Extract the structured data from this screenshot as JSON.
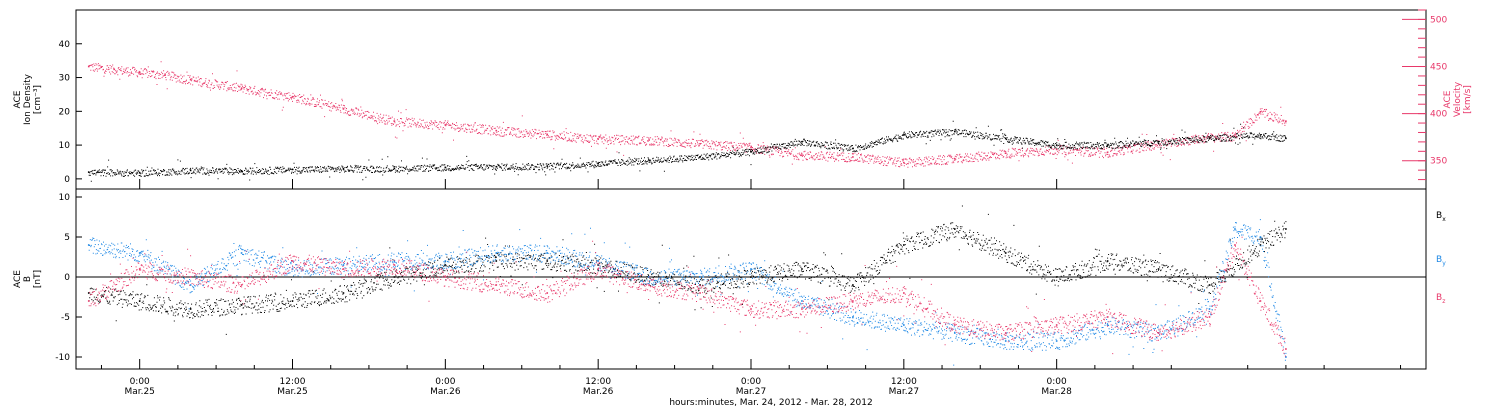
{
  "chart_data": [
    {
      "type": "scatter",
      "panel": "top",
      "left_axis": {
        "label_lines": [
          "ACE",
          "Ion Density",
          "[cm⁻³]"
        ],
        "ylim": [
          -3,
          50
        ],
        "ticks": [
          0,
          10,
          20,
          30,
          40
        ],
        "color": "#000000"
      },
      "right_axis": {
        "label_lines": [
          "ACE",
          "Velocity",
          "[km/s]"
        ],
        "ylim": [
          320,
          510
        ],
        "ticks": [
          350,
          400,
          450,
          500
        ],
        "color": "#e8386a"
      },
      "series": [
        {
          "axis": "left",
          "color": "#000000",
          "points": [
            [
              -4,
              2
            ],
            [
              0,
              1.8
            ],
            [
              4,
              2.5
            ],
            [
              8,
              2.4
            ],
            [
              12,
              2.8
            ],
            [
              16,
              3
            ],
            [
              20,
              3.1
            ],
            [
              24,
              3.4
            ],
            [
              28,
              3.6
            ],
            [
              32,
              3.8
            ],
            [
              36,
              4.5
            ],
            [
              40,
              5.5
            ],
            [
              44,
              6.5
            ],
            [
              48,
              8
            ],
            [
              52,
              11
            ],
            [
              56,
              9
            ],
            [
              60,
              13
            ],
            [
              64,
              14
            ],
            [
              68,
              12
            ],
            [
              72,
              10
            ],
            [
              76,
              10
            ],
            [
              80,
              11
            ],
            [
              84,
              12
            ],
            [
              88,
              13
            ],
            [
              90,
              12
            ]
          ]
        },
        {
          "axis": "right",
          "color": "#e8386a",
          "points": [
            [
              -4,
              450
            ],
            [
              -2,
              447
            ],
            [
              0,
              444
            ],
            [
              2,
              441
            ],
            [
              4,
              436
            ],
            [
              8,
              427
            ],
            [
              12,
              418
            ],
            [
              16,
              405
            ],
            [
              20,
              392
            ],
            [
              24,
              388
            ],
            [
              28,
              382
            ],
            [
              32,
              378
            ],
            [
              36,
              373
            ],
            [
              40,
              372
            ],
            [
              44,
              368
            ],
            [
              48,
              364
            ],
            [
              52,
              356
            ],
            [
              56,
              354
            ],
            [
              60,
              348
            ],
            [
              64,
              352
            ],
            [
              68,
              358
            ],
            [
              72,
              362
            ],
            [
              76,
              359
            ],
            [
              80,
              368
            ],
            [
              84,
              375
            ],
            [
              86,
              376
            ],
            [
              88,
              402
            ],
            [
              90,
              392
            ]
          ]
        }
      ]
    },
    {
      "type": "scatter",
      "panel": "bottom",
      "left_axis": {
        "label_lines": [
          "ACE",
          "B",
          "[nT]"
        ],
        "ylim": [
          -11.5,
          11
        ],
        "ticks": [
          -10,
          -5,
          0,
          5,
          10
        ],
        "color": "#000000"
      },
      "zero_line": true,
      "legend": {
        "placement": "right",
        "entries": [
          {
            "text": "B",
            "sub": "x",
            "color": "#000000"
          },
          {
            "text": "B",
            "sub": "y",
            "color": "#1e88e5"
          },
          {
            "text": "B",
            "sub": "z",
            "color": "#e8386a"
          }
        ]
      },
      "series": [
        {
          "name": "Bx",
          "color": "#000000",
          "points": [
            [
              -4,
              -2
            ],
            [
              0,
              -3
            ],
            [
              4,
              -4
            ],
            [
              8,
              -3.5
            ],
            [
              12,
              -3
            ],
            [
              16,
              -2
            ],
            [
              20,
              0
            ],
            [
              24,
              1.5
            ],
            [
              28,
              2
            ],
            [
              32,
              2
            ],
            [
              36,
              1.5
            ],
            [
              40,
              0
            ],
            [
              44,
              -1
            ],
            [
              48,
              0
            ],
            [
              52,
              1
            ],
            [
              56,
              -1
            ],
            [
              60,
              4
            ],
            [
              64,
              6
            ],
            [
              68,
              3
            ],
            [
              72,
              0
            ],
            [
              76,
              2
            ],
            [
              80,
              1
            ],
            [
              84,
              -1
            ],
            [
              88,
              4
            ],
            [
              90,
              6
            ]
          ]
        },
        {
          "name": "By",
          "color": "#1e88e5",
          "points": [
            [
              -4,
              4
            ],
            [
              0,
              3
            ],
            [
              4,
              -1
            ],
            [
              8,
              3
            ],
            [
              12,
              1
            ],
            [
              16,
              1.5
            ],
            [
              20,
              2
            ],
            [
              24,
              2
            ],
            [
              28,
              3
            ],
            [
              32,
              3
            ],
            [
              36,
              2
            ],
            [
              40,
              0
            ],
            [
              44,
              0
            ],
            [
              48,
              1
            ],
            [
              52,
              -3
            ],
            [
              56,
              -5
            ],
            [
              60,
              -6
            ],
            [
              64,
              -7
            ],
            [
              68,
              -8
            ],
            [
              72,
              -8
            ],
            [
              76,
              -6
            ],
            [
              80,
              -7
            ],
            [
              84,
              -4
            ],
            [
              86,
              6
            ],
            [
              88,
              5
            ],
            [
              90,
              -10
            ]
          ]
        },
        {
          "name": "Bz",
          "color": "#e8386a",
          "points": [
            [
              -4,
              -3
            ],
            [
              0,
              1
            ],
            [
              4,
              0
            ],
            [
              8,
              -1
            ],
            [
              12,
              2
            ],
            [
              16,
              1
            ],
            [
              20,
              1.5
            ],
            [
              24,
              0
            ],
            [
              28,
              -1
            ],
            [
              32,
              -2
            ],
            [
              36,
              1
            ],
            [
              40,
              -1
            ],
            [
              44,
              -2
            ],
            [
              48,
              -4
            ],
            [
              52,
              -4
            ],
            [
              56,
              -3
            ],
            [
              60,
              -2
            ],
            [
              64,
              -6
            ],
            [
              68,
              -7
            ],
            [
              72,
              -6
            ],
            [
              76,
              -5
            ],
            [
              80,
              -7
            ],
            [
              84,
              -5
            ],
            [
              86,
              4
            ],
            [
              88,
              -3
            ],
            [
              90,
              -9
            ]
          ]
        }
      ]
    }
  ],
  "x_axis": {
    "xlim": [
      -5,
      101
    ],
    "ticks": [
      {
        "x": 0,
        "time": "0:00",
        "date": "Mar.25"
      },
      {
        "x": 12,
        "time": "12:00",
        "date": "Mar.25"
      },
      {
        "x": 24,
        "time": "0:00",
        "date": "Mar.26"
      },
      {
        "x": 36,
        "time": "12:00",
        "date": "Mar.26"
      },
      {
        "x": 48,
        "time": "0:00",
        "date": "Mar.27"
      },
      {
        "x": 60,
        "time": "12:00",
        "date": "Mar.27"
      },
      {
        "x": 72,
        "time": "0:00",
        "date": "Mar.28"
      }
    ],
    "label": "hours:minutes, Mar. 24, 2012 - Mar. 28, 2012"
  }
}
